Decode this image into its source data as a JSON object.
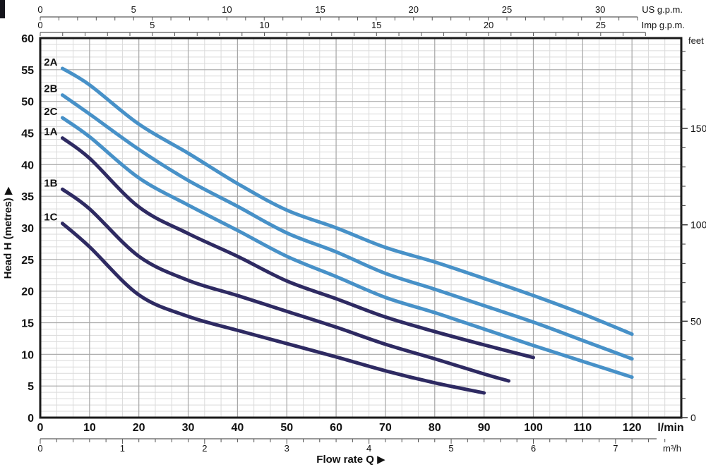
{
  "chart_data": {
    "type": "line",
    "title": "",
    "xlabel": "Flow rate Q",
    "ylabel": "Head H (metres)",
    "arrow": "▶",
    "grid": {
      "on": true,
      "major_color": "#a6a6a6",
      "minor_color": "#dadada"
    },
    "axes": {
      "us_gpm": {
        "label": "US g.p.m.",
        "major_ticks": [
          0,
          5,
          10,
          15,
          20,
          25,
          30
        ],
        "minor_step": 1,
        "minor_max": 32,
        "lmin_per_unit": 3.78541
      },
      "imp_gpm": {
        "label": "Imp g.p.m.",
        "major_ticks": [
          0,
          5,
          10,
          15,
          20,
          25
        ],
        "minor_step": 1,
        "minor_max": 27,
        "lmin_per_unit": 4.54609
      },
      "lmin": {
        "label": "l/min",
        "major_ticks": [
          0,
          10,
          20,
          30,
          40,
          50,
          60,
          70,
          80,
          90,
          100,
          110,
          120
        ],
        "range": [
          0,
          130
        ]
      },
      "m3h": {
        "label": "m³/h",
        "major_ticks": [
          0,
          1,
          2,
          3,
          4,
          5,
          6,
          7
        ],
        "minor_step": 0.2,
        "minor_max": 7.5,
        "lmin_per_unit": 16.6667
      },
      "metres": {
        "min": 0,
        "max": 60,
        "major_step": 5,
        "minor_step": 1
      },
      "feet": {
        "label": "feet",
        "major_ticks": [
          0,
          50,
          100,
          150
        ],
        "minor_step": 10,
        "minor_max": 190,
        "m_per_unit": 0.3048
      }
    },
    "colors": {
      "blue": "#4791c8",
      "navy": "#2e2a62",
      "axis": "#1a1a1a"
    },
    "series": [
      {
        "name": "2A",
        "color": "#4791c8",
        "points": [
          [
            4.5,
            55.2
          ],
          [
            10,
            52.6
          ],
          [
            20,
            46.4
          ],
          [
            30,
            41.8
          ],
          [
            40,
            37.0
          ],
          [
            50,
            32.8
          ],
          [
            60,
            30.0
          ],
          [
            70,
            26.9
          ],
          [
            80,
            24.6
          ],
          [
            90,
            22.0
          ],
          [
            100,
            19.3
          ],
          [
            110,
            16.4
          ],
          [
            120,
            13.2
          ]
        ]
      },
      {
        "name": "2B",
        "color": "#4791c8",
        "points": [
          [
            4.5,
            51.0
          ],
          [
            10,
            48.0
          ],
          [
            20,
            42.4
          ],
          [
            30,
            37.5
          ],
          [
            40,
            33.4
          ],
          [
            50,
            29.2
          ],
          [
            60,
            26.2
          ],
          [
            70,
            22.8
          ],
          [
            80,
            20.3
          ],
          [
            90,
            17.7
          ],
          [
            100,
            15.1
          ],
          [
            110,
            12.2
          ],
          [
            120,
            9.3
          ]
        ]
      },
      {
        "name": "2C",
        "color": "#4791c8",
        "points": [
          [
            4.5,
            47.4
          ],
          [
            10,
            44.4
          ],
          [
            20,
            37.9
          ],
          [
            30,
            33.6
          ],
          [
            40,
            29.6
          ],
          [
            50,
            25.5
          ],
          [
            60,
            22.3
          ],
          [
            70,
            19.0
          ],
          [
            80,
            16.6
          ],
          [
            90,
            14.0
          ],
          [
            100,
            11.4
          ],
          [
            110,
            8.9
          ],
          [
            120,
            6.4
          ]
        ]
      },
      {
        "name": "1A",
        "color": "#2e2a62",
        "points": [
          [
            4.5,
            44.2
          ],
          [
            10,
            41.0
          ],
          [
            20,
            33.3
          ],
          [
            30,
            29.1
          ],
          [
            40,
            25.5
          ],
          [
            50,
            21.6
          ],
          [
            60,
            18.8
          ],
          [
            70,
            15.9
          ],
          [
            80,
            13.6
          ],
          [
            90,
            11.5
          ],
          [
            100,
            9.5
          ]
        ]
      },
      {
        "name": "1B",
        "color": "#2e2a62",
        "points": [
          [
            4.5,
            36.1
          ],
          [
            10,
            33.0
          ],
          [
            20,
            25.5
          ],
          [
            30,
            21.7
          ],
          [
            40,
            19.3
          ],
          [
            50,
            16.8
          ],
          [
            60,
            14.3
          ],
          [
            70,
            11.6
          ],
          [
            80,
            9.3
          ],
          [
            90,
            6.9
          ],
          [
            95,
            5.8
          ]
        ]
      },
      {
        "name": "1C",
        "color": "#2e2a62",
        "points": [
          [
            4.5,
            30.7
          ],
          [
            10,
            27.0
          ],
          [
            20,
            19.4
          ],
          [
            30,
            16.0
          ],
          [
            40,
            13.8
          ],
          [
            50,
            11.7
          ],
          [
            60,
            9.6
          ],
          [
            70,
            7.4
          ],
          [
            80,
            5.5
          ],
          [
            90,
            3.9
          ]
        ]
      }
    ]
  }
}
